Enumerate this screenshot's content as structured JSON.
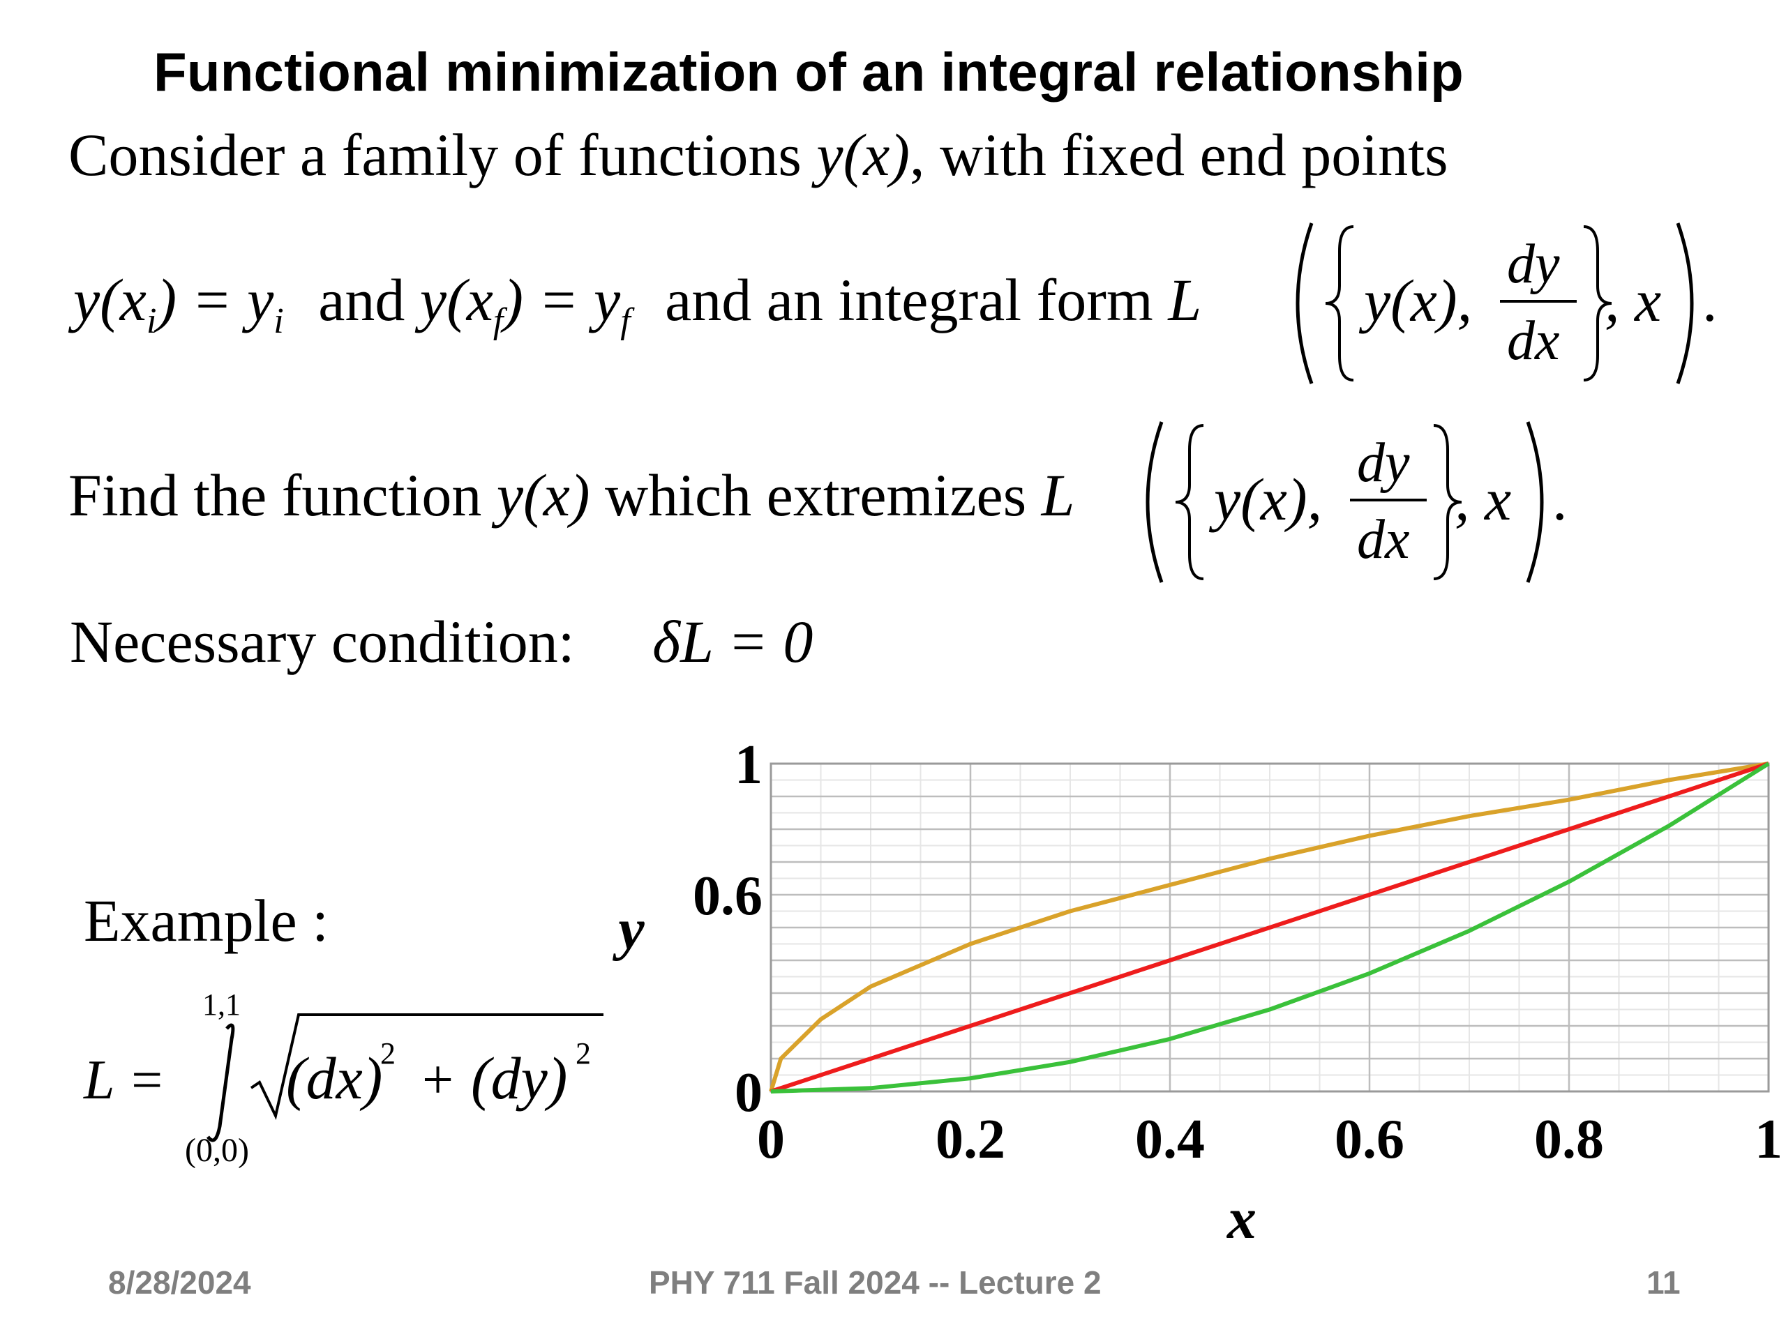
{
  "title": "Functional minimization of an integral relationship",
  "line1": {
    "text": "Consider a family of functions ",
    "func": "y(x)",
    "rest": ", with fixed end points"
  },
  "line2": {
    "eq1_y": "y",
    "eq1_x": "(x",
    "eq1_i": "i",
    "eq1_close": ") = y",
    "eq1_yi": "i",
    "and1": "and",
    "eq2_y": "y",
    "eq2_x": "(x",
    "eq2_f": "f",
    "eq2_close": ") = y",
    "eq2_yf": "f",
    "and2": "and an integral form",
    "L": "L",
    "dy": "dy",
    "dx": "dx",
    "yx": "y(x),",
    "comma_x": ", x",
    "period": "."
  },
  "line3": {
    "text": "Find the function ",
    "func": "y(x)",
    "rest": " which extremizes",
    "L": "L",
    "dy": "dy",
    "dx": "dx",
    "yx": "y(x),",
    "comma_x": ", x",
    "period": "."
  },
  "line4": {
    "label": "Necessary condition:",
    "equation": "δL = 0"
  },
  "example": {
    "label": "Example :",
    "L": "L =",
    "upper_limit": "1,1",
    "lower_limit": "(0,0)",
    "integrand_dx": "(dx)",
    "integrand_dy": "(dy)",
    "exp": "2",
    "plus": "+"
  },
  "chart_data": {
    "type": "line",
    "xlabel": "x",
    "ylabel": "y",
    "xlim": [
      0,
      1
    ],
    "ylim": [
      0,
      1
    ],
    "xticks": [
      0,
      0.2,
      0.4,
      0.6,
      0.8,
      1
    ],
    "xtick_labels": [
      "0",
      "0.2",
      "0.4",
      "0.6",
      "0.8",
      "1"
    ],
    "yticks": [
      0,
      0.6,
      1
    ],
    "ytick_labels": [
      "0",
      "0.6",
      "1"
    ],
    "grid": true,
    "series": [
      {
        "color": "#d9a22a",
        "x": [
          0,
          0.01,
          0.05,
          0.1,
          0.2,
          0.3,
          0.4,
          0.5,
          0.6,
          0.7,
          0.8,
          0.9,
          1
        ],
        "y": [
          0,
          0.1,
          0.22,
          0.32,
          0.45,
          0.55,
          0.63,
          0.71,
          0.78,
          0.84,
          0.89,
          0.95,
          1
        ]
      },
      {
        "color": "#ee1c1c",
        "x": [
          0,
          0.2,
          0.4,
          0.6,
          0.8,
          1
        ],
        "y": [
          0,
          0.2,
          0.4,
          0.6,
          0.8,
          1
        ]
      },
      {
        "color": "#3ac13a",
        "x": [
          0,
          0.1,
          0.2,
          0.3,
          0.4,
          0.5,
          0.6,
          0.7,
          0.8,
          0.9,
          1
        ],
        "y": [
          0,
          0.01,
          0.04,
          0.09,
          0.16,
          0.25,
          0.36,
          0.49,
          0.64,
          0.81,
          1
        ]
      }
    ]
  },
  "footer": {
    "date": "8/28/2024",
    "course": "PHY 711  Fall 2024 -- Lecture 2",
    "page": "11"
  }
}
